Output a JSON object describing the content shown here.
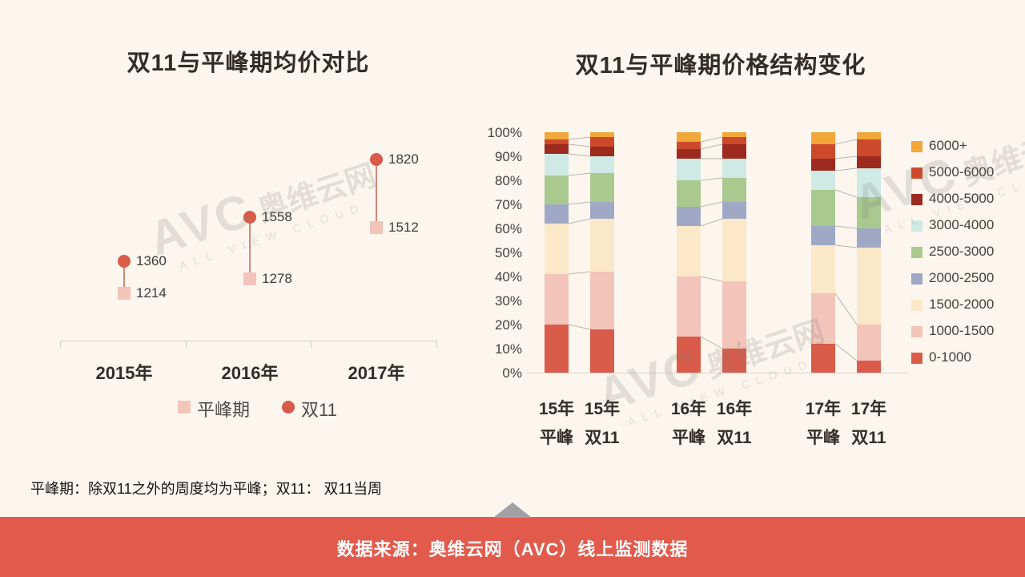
{
  "page": {
    "background": "#fcf6ee",
    "accent_red": "#e25a4c",
    "note": "平峰期：除双11之外的周度均为平峰；双11： 双11当周",
    "footer": "数据来源：奥维云网（AVC）线上监测数据",
    "watermark": {
      "main": "AVC",
      "brand": "奥维云网",
      "sub": "ALL VIEW CLOUD"
    }
  },
  "chart_data": [
    {
      "id": "avg-price-comparison",
      "type": "scatter",
      "title": "双11与平峰期均价对比",
      "categories": [
        "2015年",
        "2016年",
        "2017年"
      ],
      "series": [
        {
          "name": "平峰期",
          "marker": "square",
          "color": "#f2c4ba",
          "values": [
            1214,
            1278,
            1512
          ]
        },
        {
          "name": "双11",
          "marker": "circle",
          "color": "#d95b49",
          "values": [
            1360,
            1558,
            1820
          ]
        }
      ],
      "ylim": [
        1000,
        2050
      ],
      "legend_position": "bottom",
      "stem_color": "#cf8878"
    },
    {
      "id": "price-structure-change",
      "type": "bar",
      "stacked": true,
      "percent": true,
      "title": "双11与平峰期价格结构变化",
      "categories": [
        [
          "15年",
          "平峰"
        ],
        [
          "15年",
          "双11"
        ],
        [
          "16年",
          "平峰"
        ],
        [
          "16年",
          "双11"
        ],
        [
          "17年",
          "平峰"
        ],
        [
          "17年",
          "双11"
        ]
      ],
      "y_ticks": [
        "100%",
        "90%",
        "80%",
        "70%",
        "60%",
        "50%",
        "40%",
        "30%",
        "20%",
        "10%",
        "0%"
      ],
      "ylim": [
        0,
        100
      ],
      "legend_position": "right",
      "series": [
        {
          "name": "0-1000",
          "color": "#d95b49",
          "values": [
            20,
            18,
            15,
            10,
            12,
            5
          ]
        },
        {
          "name": "1000-1500",
          "color": "#f2c4ba",
          "values": [
            21,
            24,
            25,
            28,
            21,
            15
          ]
        },
        {
          "name": "1500-2000",
          "color": "#fae8c8",
          "values": [
            21,
            22,
            21,
            26,
            20,
            32
          ]
        },
        {
          "name": "2000-2500",
          "color": "#9fa9c5",
          "values": [
            8,
            7,
            8,
            7,
            8,
            8
          ]
        },
        {
          "name": "2500-3000",
          "color": "#a9c98e",
          "values": [
            12,
            12,
            11,
            10,
            15,
            13
          ]
        },
        {
          "name": "3000-4000",
          "color": "#cfe9e4",
          "values": [
            9,
            7,
            9,
            8,
            8,
            12
          ]
        },
        {
          "name": "4000-5000",
          "color": "#9c2a1e",
          "values": [
            4,
            4,
            4,
            6,
            5,
            5
          ]
        },
        {
          "name": "5000-6000",
          "color": "#cc4a2b",
          "values": [
            2,
            4,
            3,
            3,
            6,
            7
          ]
        },
        {
          "name": "6000+",
          "color": "#f2a73b",
          "values": [
            3,
            2,
            4,
            2,
            5,
            3
          ]
        }
      ]
    }
  ]
}
